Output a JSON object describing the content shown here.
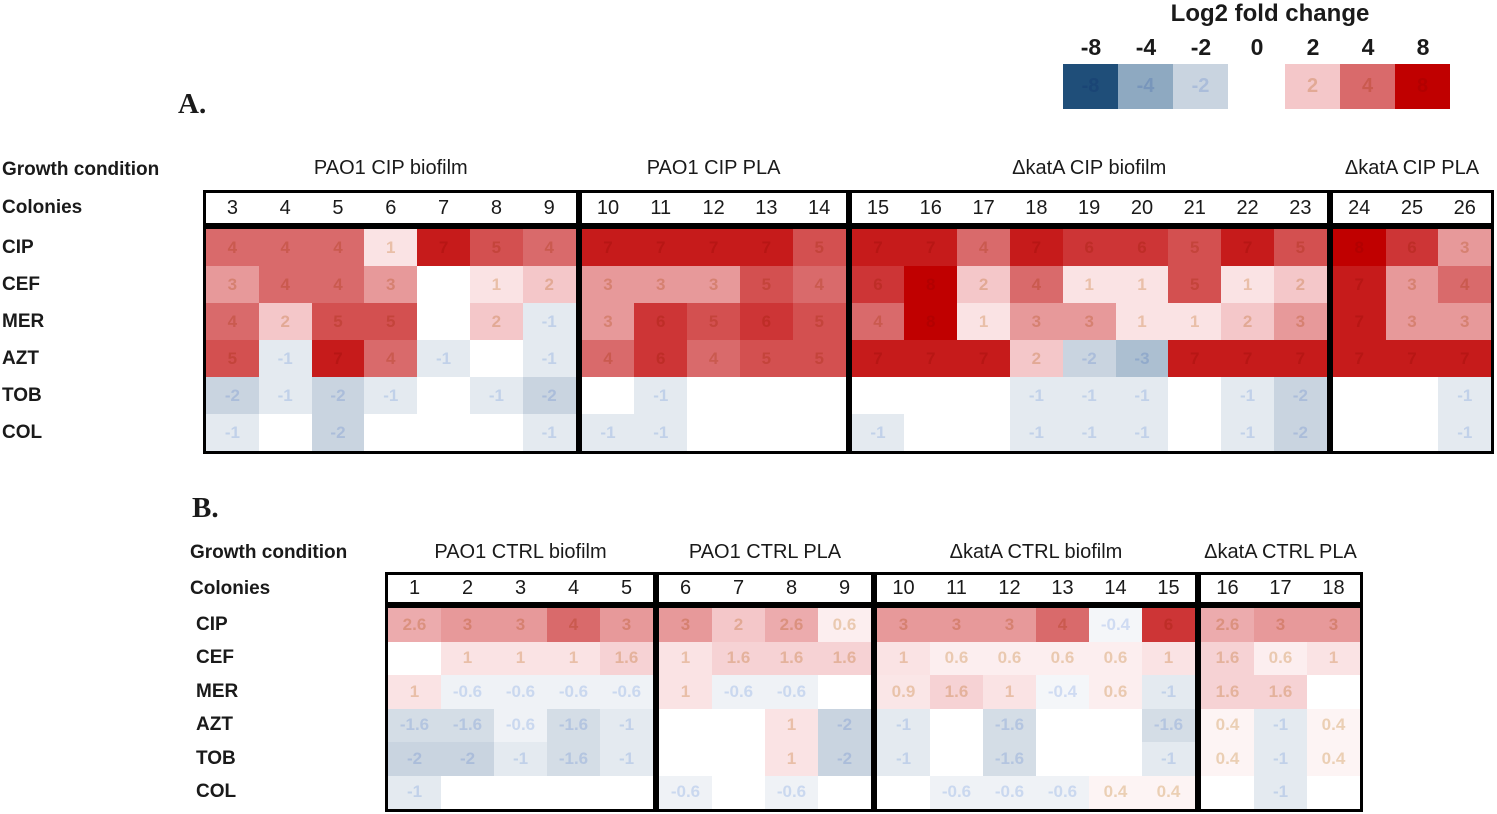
{
  "legend": {
    "title": "Log2 fold change",
    "tick_labels": [
      "-8",
      "-4",
      "-2",
      "0",
      "2",
      "4",
      "8"
    ],
    "negative_swatch_values": [
      -8,
      -4,
      -2
    ],
    "positive_swatch_values": [
      2,
      4,
      8
    ],
    "color_stops": {
      "-8": "#1F4E79",
      "-4": "#8EA9C1",
      "-2": "#C9D4E0",
      "0": "#FFFFFF",
      "2": "#F4C7C9",
      "4": "#D96A6B",
      "8": "#C00000"
    }
  },
  "panel_a": {
    "letter": "A.",
    "growth_condition_label": "Growth condition",
    "colonies_label": "Colonies"
  },
  "panel_b": {
    "letter": "B.",
    "growth_condition_label": "Growth condition",
    "colonies_label": "Colonies"
  },
  "chart_data": [
    {
      "type": "heatmap",
      "panel": "A",
      "value_scale": "log2 fold change",
      "value_range": [
        -8,
        8
      ],
      "row_labels": [
        "CIP",
        "CEF",
        "MER",
        "AZT",
        "TOB",
        "COL"
      ],
      "groups": [
        {
          "title": "PAO1 CIP biofilm",
          "colonies": [
            "3",
            "4",
            "5",
            "6",
            "7",
            "8",
            "9"
          ],
          "values": [
            [
              4,
              4,
              4,
              1,
              7,
              5,
              4
            ],
            [
              3,
              4,
              4,
              3,
              0,
              1,
              2
            ],
            [
              4,
              2,
              5,
              5,
              0,
              2,
              -1
            ],
            [
              5,
              -1,
              7,
              4,
              -1,
              0,
              -1
            ],
            [
              -2,
              -1,
              -2,
              -1,
              0,
              -1,
              -2
            ],
            [
              -1,
              0,
              -2,
              0,
              0,
              0,
              -1
            ]
          ]
        },
        {
          "title": "PAO1 CIP PLA",
          "colonies": [
            "10",
            "11",
            "12",
            "13",
            "14"
          ],
          "values": [
            [
              7,
              7,
              7,
              7,
              5
            ],
            [
              3,
              3,
              3,
              5,
              4
            ],
            [
              3,
              6,
              5,
              6,
              5
            ],
            [
              4,
              6,
              4,
              5,
              5
            ],
            [
              0,
              -1,
              0,
              0,
              0
            ],
            [
              -1,
              -1,
              0,
              0,
              0
            ]
          ]
        },
        {
          "title": "ΔkatA CIP biofilm",
          "colonies": [
            "15",
            "16",
            "17",
            "18",
            "19",
            "20",
            "21",
            "22",
            "23"
          ],
          "values": [
            [
              7,
              7,
              4,
              7,
              6,
              6,
              5,
              7,
              5
            ],
            [
              6,
              8,
              2,
              4,
              1,
              1,
              5,
              1,
              2
            ],
            [
              4,
              8,
              1,
              3,
              3,
              1,
              1,
              2,
              3
            ],
            [
              7,
              7,
              7,
              2,
              -2,
              -3,
              7,
              7,
              7
            ],
            [
              0,
              0,
              0,
              -1,
              -1,
              -1,
              0,
              -1,
              -2
            ],
            [
              -1,
              0,
              0,
              -1,
              -1,
              -1,
              0,
              -1,
              -2
            ]
          ]
        },
        {
          "title": "ΔkatA CIP PLA",
          "colonies": [
            "24",
            "25",
            "26"
          ],
          "values": [
            [
              8,
              6,
              3
            ],
            [
              7,
              3,
              4
            ],
            [
              7,
              3,
              3
            ],
            [
              7,
              7,
              7
            ],
            [
              0,
              0,
              -1
            ],
            [
              0,
              0,
              -1
            ]
          ]
        }
      ]
    },
    {
      "type": "heatmap",
      "panel": "B",
      "value_scale": "log2 fold change",
      "value_range": [
        -8,
        8
      ],
      "row_labels": [
        "CIP",
        "CEF",
        "MER",
        "AZT",
        "TOB",
        "COL"
      ],
      "groups": [
        {
          "title": "PAO1 CTRL biofilm",
          "colonies": [
            "1",
            "2",
            "3",
            "4",
            "5"
          ],
          "values": [
            [
              2.6,
              3,
              3,
              4,
              3
            ],
            [
              0,
              1,
              1,
              1,
              1.6
            ],
            [
              1,
              -0.6,
              -0.6,
              -0.6,
              -0.6
            ],
            [
              -1.6,
              -1.6,
              -0.6,
              -1.6,
              -1
            ],
            [
              -2,
              -2,
              -1,
              -1.6,
              -1
            ],
            [
              -1,
              0,
              0,
              0,
              0
            ]
          ]
        },
        {
          "title": "PAO1 CTRL PLA",
          "colonies": [
            "6",
            "7",
            "8",
            "9"
          ],
          "values": [
            [
              3,
              2,
              2.6,
              0.6
            ],
            [
              1,
              1.6,
              1.6,
              1.6
            ],
            [
              1,
              -0.6,
              -0.6,
              0
            ],
            [
              0,
              0,
              1,
              -2
            ],
            [
              0,
              0,
              1,
              -2
            ],
            [
              -0.6,
              0,
              -0.6,
              0
            ]
          ]
        },
        {
          "title": "ΔkatA CTRL biofilm",
          "colonies": [
            "10",
            "11",
            "12",
            "13",
            "14",
            "15"
          ],
          "values": [
            [
              3,
              3,
              3,
              4,
              -0.4,
              6
            ],
            [
              1,
              0.6,
              0.6,
              0.6,
              0.6,
              1
            ],
            [
              0.9,
              1.6,
              1,
              -0.4,
              0.6,
              -1
            ],
            [
              -1,
              0,
              -1.6,
              0,
              0,
              -1.6
            ],
            [
              -1,
              0,
              -1.6,
              0,
              0,
              -1
            ],
            [
              0,
              -0.6,
              -0.6,
              -0.6,
              0.4,
              0.4
            ]
          ]
        },
        {
          "title": "ΔkatA CTRL PLA",
          "colonies": [
            "16",
            "17",
            "18"
          ],
          "values": [
            [
              2.6,
              3,
              3
            ],
            [
              1.6,
              0.6,
              1
            ],
            [
              1.6,
              1.6,
              0
            ],
            [
              0.4,
              -1,
              0.4
            ],
            [
              0.4,
              -1,
              0.4
            ],
            [
              0,
              -1,
              0
            ]
          ]
        }
      ]
    }
  ]
}
